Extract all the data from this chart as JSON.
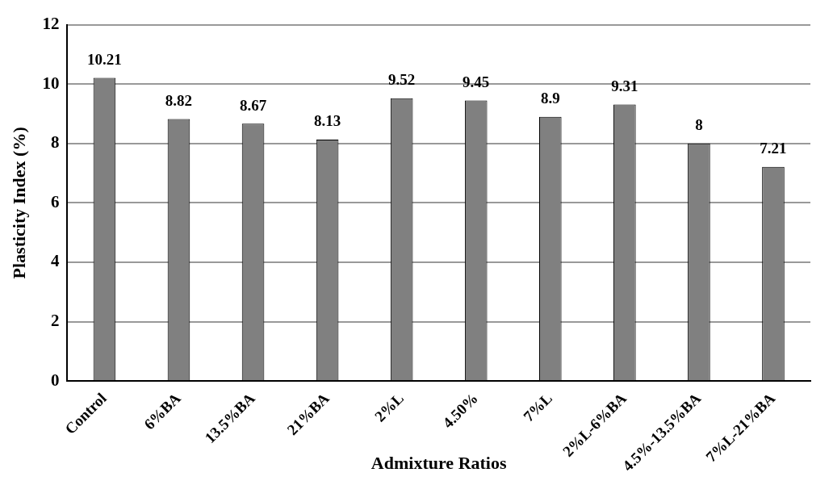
{
  "chart_data": {
    "type": "bar",
    "xlabel": "Admixture Ratios",
    "ylabel": "Plasticity Index (%)",
    "categories": [
      "Control",
      "6%BA",
      "13.5%BA",
      "21%BA",
      "2%L",
      "4.50%",
      "7%L",
      "2%L-6%BA",
      "4.5%-13.5%BA",
      "7%L-21%BA"
    ],
    "values": [
      10.21,
      8.82,
      8.67,
      8.13,
      9.52,
      9.45,
      8.9,
      9.31,
      8,
      7.21
    ],
    "color": "#808080",
    "ylim": [
      0,
      12
    ],
    "yticks": [
      0,
      2,
      4,
      6,
      8,
      10,
      12
    ],
    "grid": "y",
    "data_labels": true,
    "legend": false
  }
}
